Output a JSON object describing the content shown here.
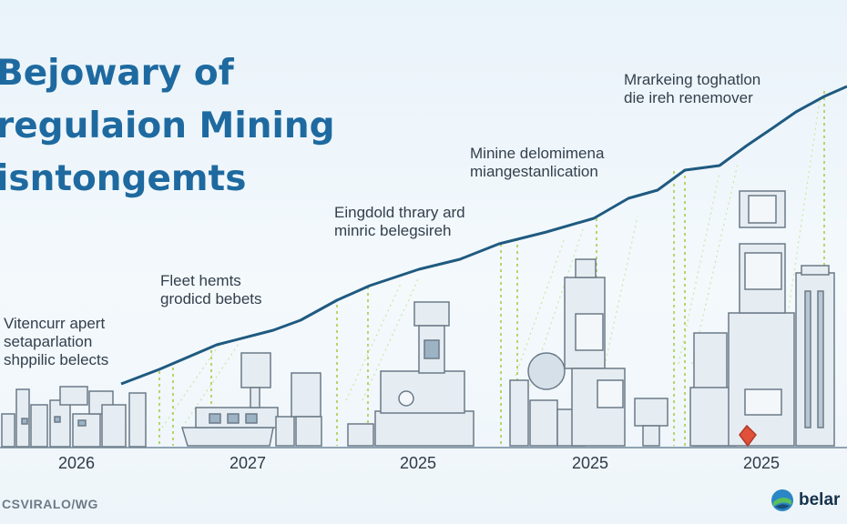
{
  "title": {
    "line1": "Bejowary of",
    "line2": "regulaion Mining",
    "line3": "isntongemts"
  },
  "notes": [
    {
      "line1": "Vitencurr apert",
      "line2": "setaparlation",
      "line3": "shppilic belects"
    },
    {
      "line1": "Fleet hemts",
      "line2": "grodicd bebets"
    },
    {
      "line1": "Eingdold thrary ard",
      "line2": "minric belegsireh"
    },
    {
      "line1": "Minine delomimena",
      "line2": "miangestanlication"
    },
    {
      "line1": "Mrarkeing toghatlon",
      "line2": "die ireh renemover"
    }
  ],
  "years": [
    "2026",
    "2027",
    "2025",
    "2025",
    "2025"
  ],
  "footer_left": "CSVIRALO/WG",
  "brand": {
    "name": "belar"
  },
  "colors": {
    "title": "#1e6aa0",
    "trend_line": "#1f5a80",
    "guide_lines": "#a9cc4a",
    "buildings": "#6b7a88",
    "accent": "#e0503a"
  }
}
